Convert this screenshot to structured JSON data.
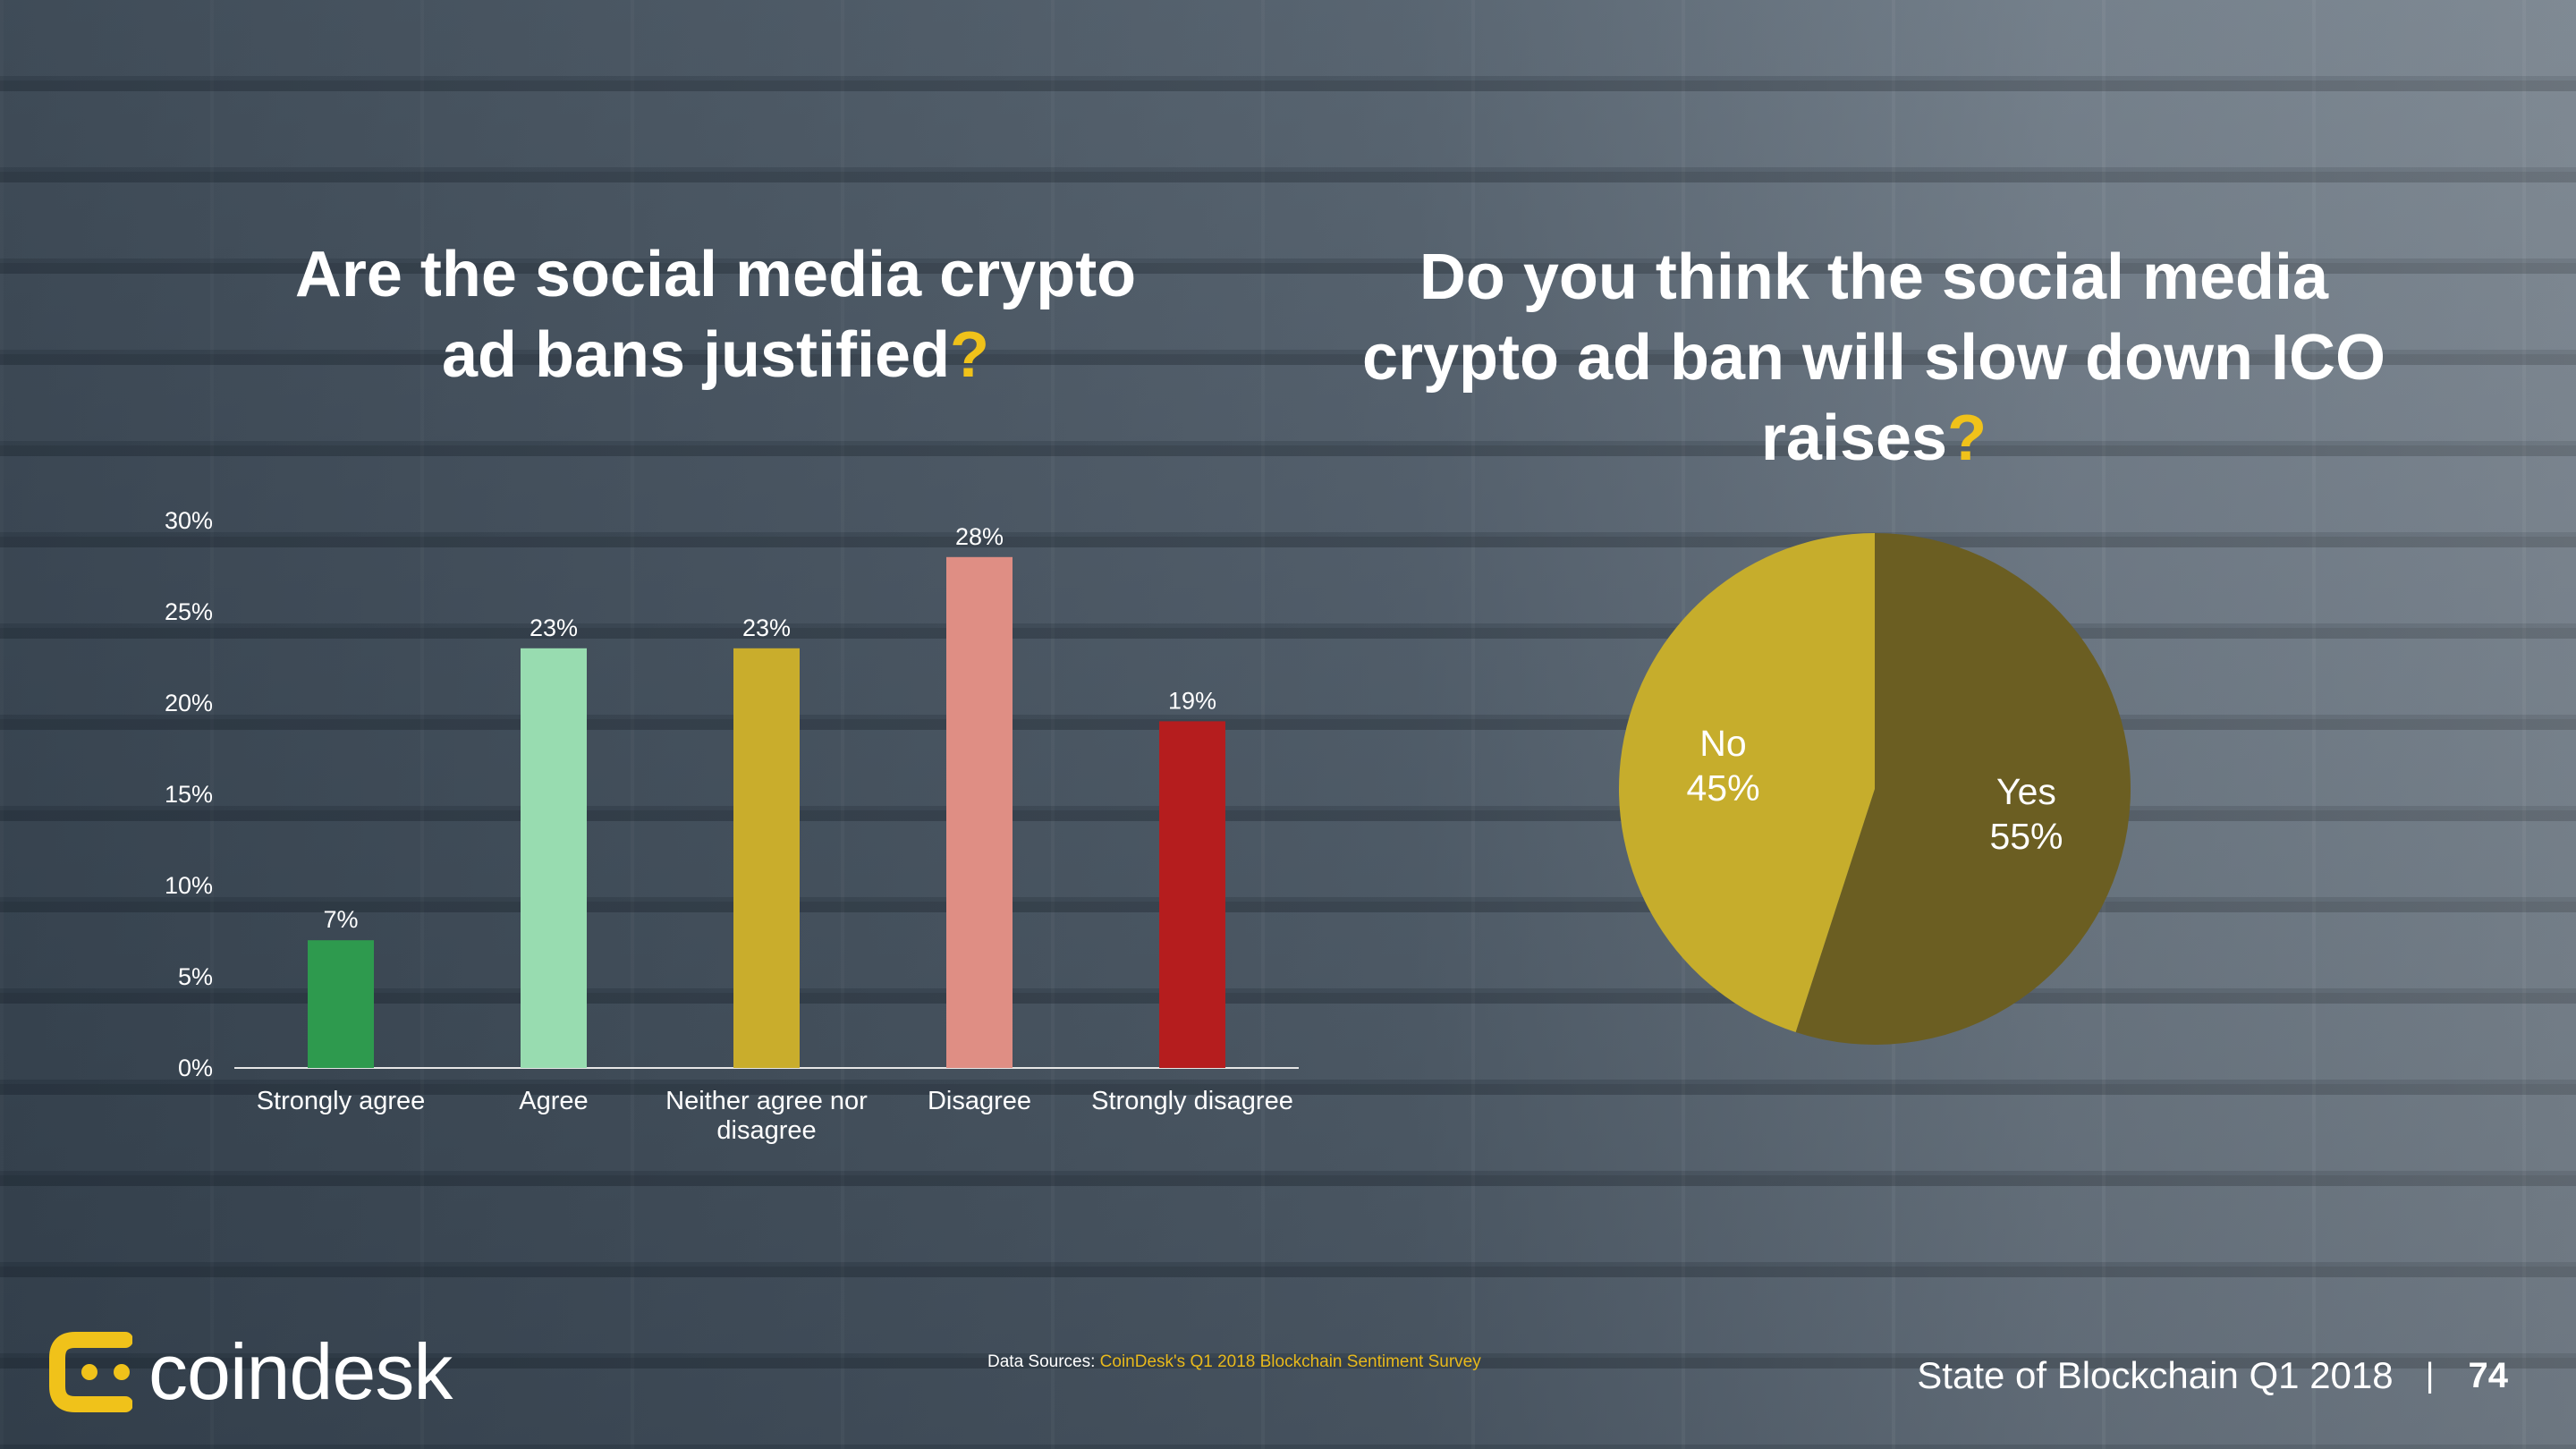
{
  "slide": {
    "left_title": "Are the social media crypto ad bans justified",
    "right_title": "Do you think the social media crypto ad ban will slow down ICO raises",
    "question_mark": "?",
    "brand": "coindesk",
    "source_label": "Data Sources: ",
    "source_text": "CoinDesk's Q1 2018 Blockchain Sentiment Survey",
    "footer_title": "State of Blockchain Q1 2018",
    "footer_separator": "|",
    "page_number": "74",
    "colors": {
      "accent": "#f0c21a",
      "logo": "#f0c21a"
    },
    "icons": {
      "logo": "coindesk-logo-icon"
    }
  },
  "chart_data": [
    {
      "type": "bar",
      "title": "Are the social media crypto ad bans justified?",
      "categories": [
        "Strongly agree",
        "Agree",
        "Neither agree nor disagree",
        "Disagree",
        "Strongly disagree"
      ],
      "category_lines": [
        [
          "Strongly agree"
        ],
        [
          "Agree"
        ],
        [
          "Neither agree nor",
          "disagree"
        ],
        [
          "Disagree"
        ],
        [
          "Strongly disagree"
        ]
      ],
      "values": [
        7,
        23,
        23,
        28,
        19
      ],
      "data_labels": [
        "7%",
        "23%",
        "23%",
        "28%",
        "19%"
      ],
      "colors": [
        "#2e9a4e",
        "#98dcb0",
        "#c9ad2c",
        "#df8e84",
        "#b51d1e"
      ],
      "ylim": [
        0,
        30
      ],
      "yticks": [
        0,
        5,
        10,
        15,
        20,
        25,
        30
      ],
      "ytick_labels": [
        "0%",
        "5%",
        "10%",
        "15%",
        "20%",
        "25%",
        "30%"
      ],
      "xlabel": "",
      "ylabel": "",
      "grid": false,
      "legend": "none"
    },
    {
      "type": "pie",
      "title": "Do you think the social media crypto ad ban will slow down ICO raises?",
      "slices": [
        {
          "label": "Yes",
          "value": 55,
          "value_label": "55%",
          "color": "#6b5e22"
        },
        {
          "label": "No",
          "value": 45,
          "value_label": "45%",
          "color": "#c6ad2c"
        }
      ],
      "start": "12 o'clock",
      "direction": "clockwise",
      "legend": "none"
    }
  ]
}
